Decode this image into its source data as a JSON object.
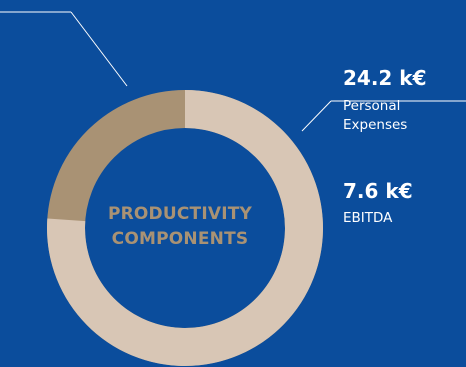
{
  "chart_data": {
    "type": "pie",
    "title": "PRODUCTIVITY COMPONENTS",
    "slices": [
      {
        "label": "Personal Expenses",
        "display_value": "24.2 k€",
        "value": 24.2,
        "color": "#d8c6b5"
      },
      {
        "label": "EBITDA",
        "display_value": "7.6 k€",
        "value": 7.6,
        "color": "#a99274"
      }
    ],
    "center_label_lines": [
      "PRODUCTIVITY",
      "COMPONENTS"
    ]
  },
  "theme": {
    "background": "#0b4d9c",
    "accent": "#a99274",
    "light": "#d8c6b5"
  }
}
